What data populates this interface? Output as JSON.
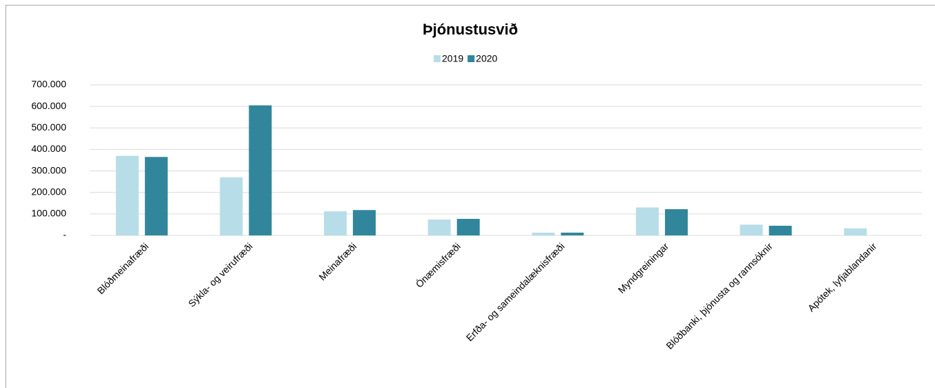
{
  "chart_data": {
    "type": "bar",
    "title": "Þjónustusvið",
    "categories": [
      "Blóðmeinafræði",
      "Sýkla- og veirufræði",
      "Meinafræði",
      "Ónæmisfræði",
      "Erfða- og sameindalæknisfræði",
      "Myndgreiningar",
      "Blóðbanki, þjónusta og rannsóknir",
      "Apótek, lyfjablandanir"
    ],
    "series": [
      {
        "name": "2019",
        "color": "#b7dde8",
        "values": [
          370000,
          270000,
          112000,
          74000,
          13000,
          130000,
          50000,
          33000
        ]
      },
      {
        "name": "2020",
        "color": "#31869b",
        "values": [
          365000,
          605000,
          118000,
          77000,
          13000,
          122000,
          45000,
          0
        ]
      }
    ],
    "ylim": [
      0,
      700000
    ],
    "yticks": [
      {
        "value": 0,
        "label": "-"
      },
      {
        "value": 100000,
        "label": "100.000"
      },
      {
        "value": 200000,
        "label": "200.000"
      },
      {
        "value": 300000,
        "label": "300.000"
      },
      {
        "value": 400000,
        "label": "400.000"
      },
      {
        "value": 500000,
        "label": "500.000"
      },
      {
        "value": 600000,
        "label": "600.000"
      },
      {
        "value": 700000,
        "label": "700.000"
      }
    ],
    "grid": true,
    "legend": "top"
  }
}
